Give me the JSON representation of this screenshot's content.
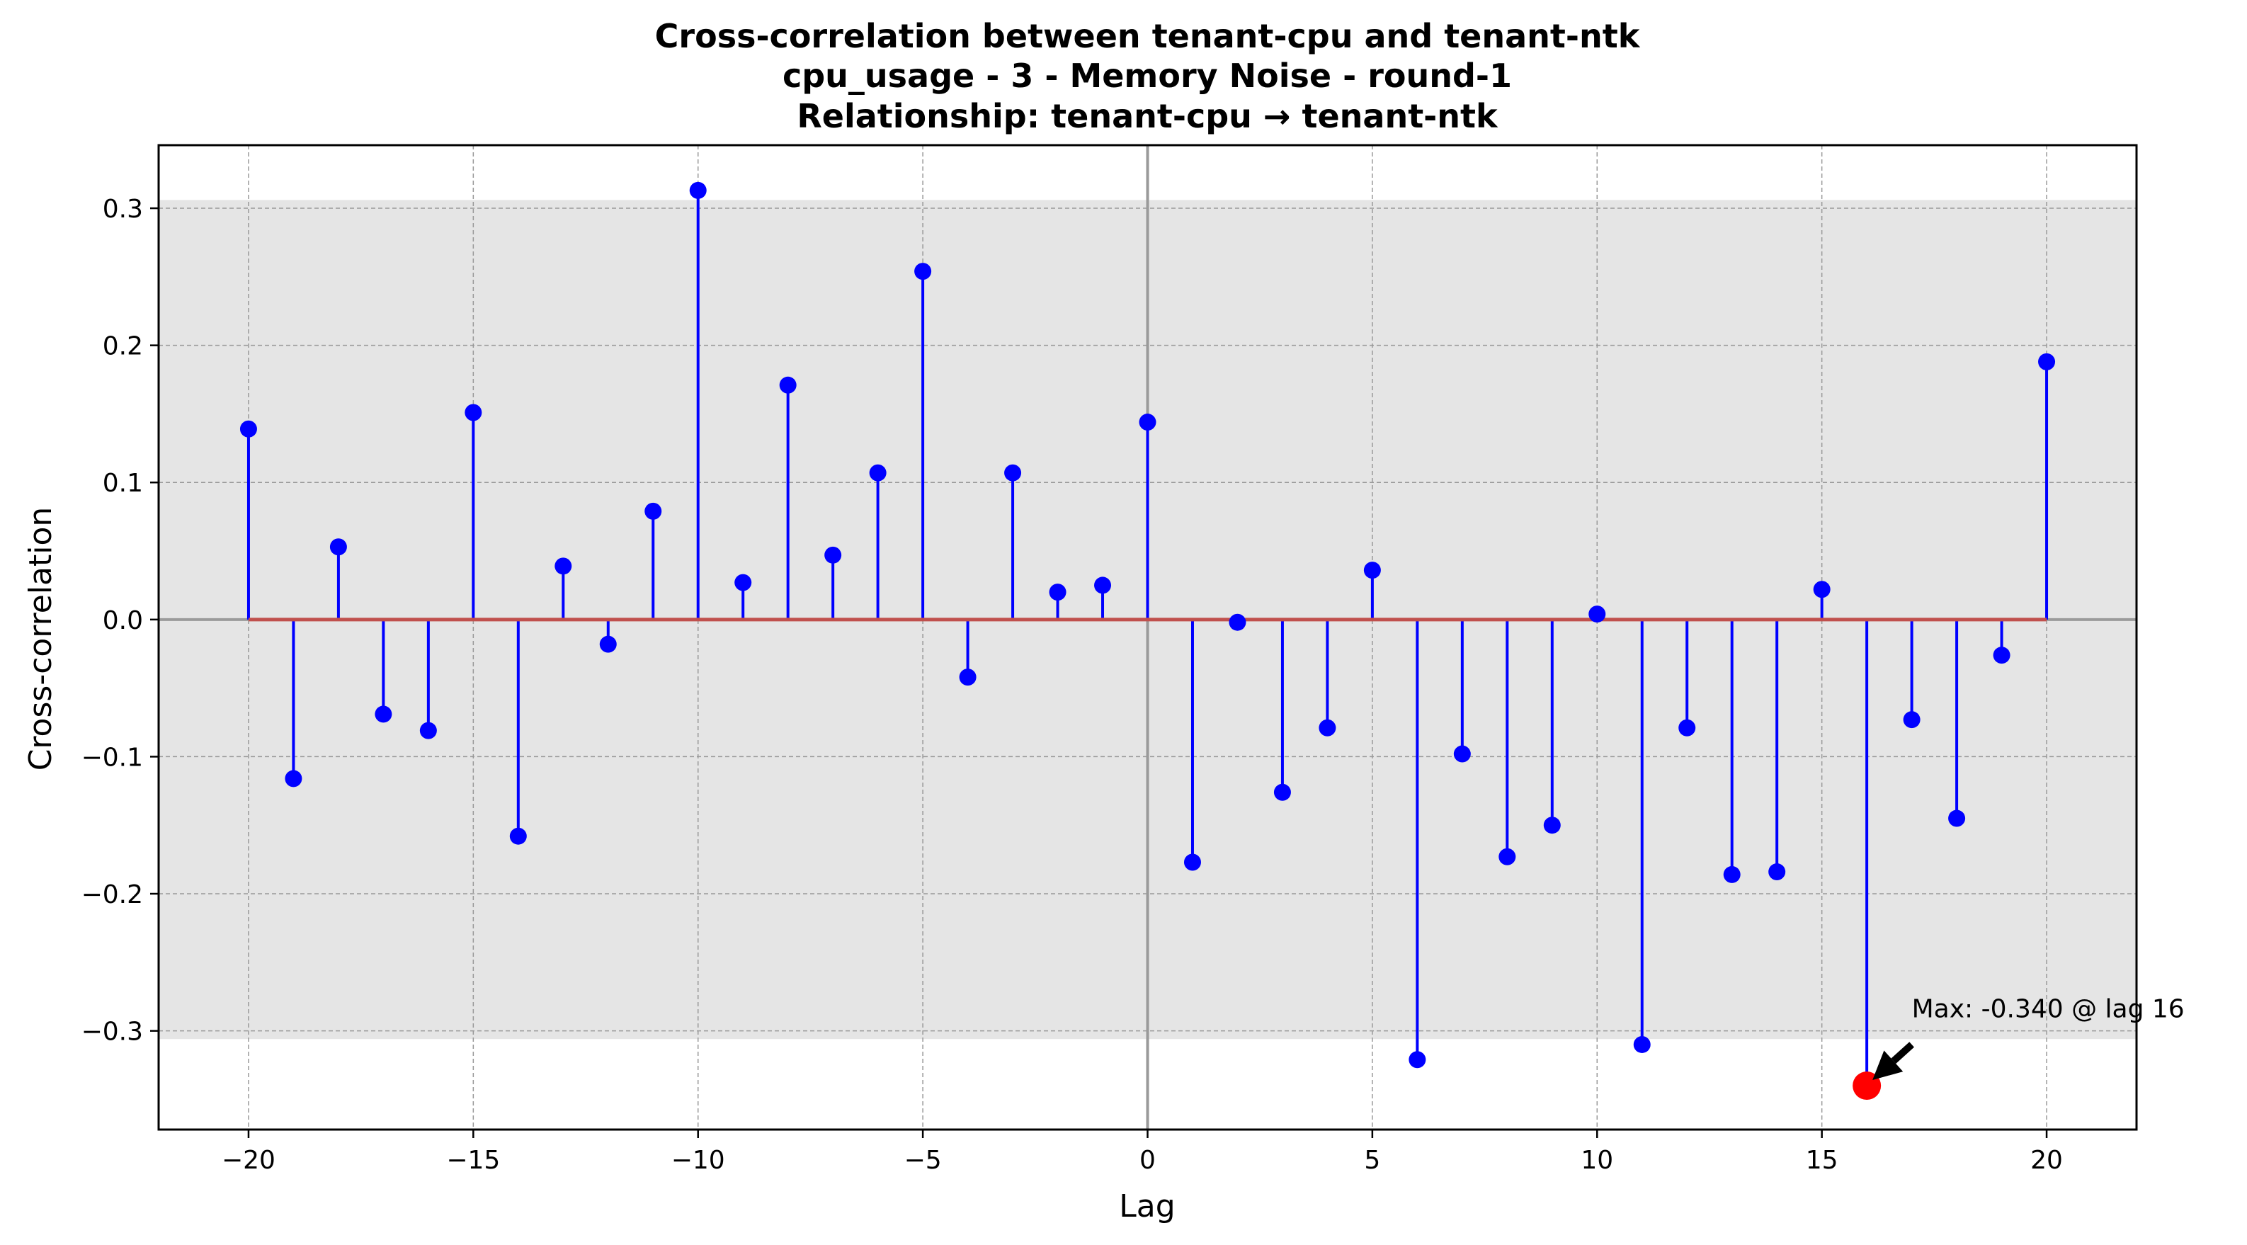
{
  "chart_data": {
    "type": "stem",
    "title_lines": [
      "Cross-correlation between tenant-cpu and tenant-ntk",
      "cpu_usage - 3 - Memory Noise - round-1",
      "Relationship: tenant-cpu → tenant-ntk"
    ],
    "xlabel": "Lag",
    "ylabel": "Cross-correlation",
    "xlim": [
      -22,
      22
    ],
    "ylim": [
      -0.372,
      0.346
    ],
    "xticks": [
      -20,
      -15,
      -10,
      -5,
      0,
      5,
      10,
      15,
      20
    ],
    "xtick_labels": [
      "−20",
      "−15",
      "−10",
      "−5",
      "0",
      "5",
      "10",
      "15",
      "20"
    ],
    "yticks": [
      -0.3,
      -0.2,
      -0.1,
      0.0,
      0.1,
      0.2,
      0.3
    ],
    "ytick_labels": [
      "−0.3",
      "−0.2",
      "−0.1",
      "0.0",
      "0.1",
      "0.2",
      "0.3"
    ],
    "grid": true,
    "confidence_band": [
      -0.306,
      0.306
    ],
    "x": [
      -20,
      -19,
      -18,
      -17,
      -16,
      -15,
      -14,
      -13,
      -12,
      -11,
      -10,
      -9,
      -8,
      -7,
      -6,
      -5,
      -4,
      -3,
      -2,
      -1,
      0,
      1,
      2,
      3,
      4,
      5,
      6,
      7,
      8,
      9,
      10,
      11,
      12,
      13,
      14,
      15,
      16,
      17,
      18,
      19,
      20
    ],
    "values": [
      0.139,
      -0.116,
      0.053,
      -0.069,
      -0.081,
      0.151,
      -0.158,
      0.039,
      -0.018,
      0.079,
      0.313,
      0.027,
      0.171,
      0.047,
      0.107,
      0.254,
      -0.042,
      0.107,
      0.02,
      0.025,
      0.144,
      -0.177,
      -0.002,
      -0.126,
      -0.079,
      0.036,
      -0.321,
      -0.098,
      -0.173,
      -0.15,
      0.004,
      -0.31,
      -0.079,
      -0.186,
      -0.184,
      0.022,
      -0.34,
      -0.073,
      -0.145,
      -0.026,
      0.188
    ],
    "max_point": {
      "lag": 16,
      "value": -0.34
    },
    "annotation": "Max: -0.340 @ lag 16",
    "colors": {
      "stem": "#0000ff",
      "marker": "#0000ff",
      "baseline": "#c0504d",
      "max_marker": "#ff0000",
      "band": "#e5e5e5",
      "grid": "#999999",
      "zero_line": "#9a9a9a",
      "arrow": "#000000"
    }
  }
}
